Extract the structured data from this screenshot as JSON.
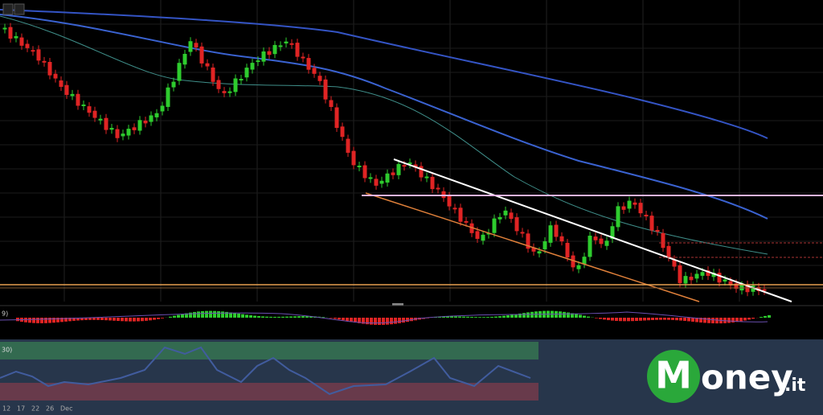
{
  "x_axis": {
    "labels": [
      "12",
      "17",
      "22",
      "26",
      "Dec"
    ]
  },
  "macd_panel": {
    "label": "9)"
  },
  "rsi_panel": {
    "label": "30)"
  },
  "logo": {
    "initial": "M",
    "rest": "oney",
    "suffix": ".it"
  }
}
